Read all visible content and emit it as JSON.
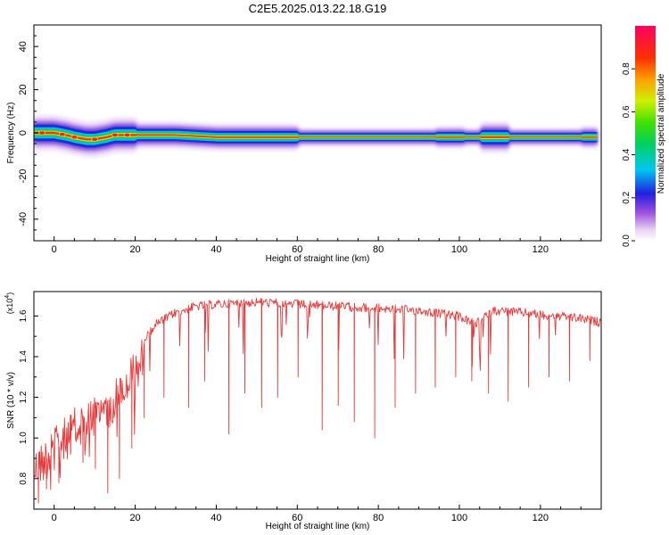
{
  "title": "C2E5.2025.013.22.18.G19",
  "chart_data": [
    {
      "type": "heatmap",
      "xlabel": "Height of straight line (km)",
      "ylabel": "Frequency (Hz)",
      "xlim": [
        -5,
        135
      ],
      "ylim": [
        -50,
        50
      ],
      "x_ticks": [
        0,
        20,
        40,
        60,
        80,
        100,
        120
      ],
      "y_ticks": [
        -40,
        -20,
        0,
        20,
        40
      ],
      "colorbar": {
        "label": "Normalized spectral amplitude",
        "range": [
          0,
          1
        ],
        "ticks": [
          "0.0",
          "0.2",
          "0.4",
          "0.6",
          "0.8"
        ],
        "tick_values": [
          0.0,
          0.2,
          0.4,
          0.6,
          0.8
        ]
      },
      "ridge": {
        "x": [
          -5,
          0,
          3,
          5,
          8,
          10,
          13,
          15,
          18,
          20,
          30,
          40,
          50,
          60,
          70,
          80,
          90,
          100,
          105,
          110,
          120,
          134
        ],
        "frequency": [
          0,
          0,
          -1,
          -2,
          -3,
          -3,
          -2,
          -1,
          -1,
          -1,
          -1,
          -2,
          -2,
          -2,
          -2,
          -2,
          -2,
          -2,
          -2,
          -2,
          -2,
          -2
        ]
      },
      "band_halfwidth_hz": [
        {
          "x": [
            -5,
            20
          ],
          "value": 4
        },
        {
          "x": [
            20,
            60
          ],
          "value": 3
        },
        {
          "x": [
            60,
            94
          ],
          "value": 2
        },
        {
          "x": [
            94,
            101
          ],
          "value": 2.5
        },
        {
          "x": [
            101,
            105
          ],
          "value": 2
        },
        {
          "x": [
            105,
            112
          ],
          "value": 3.5
        },
        {
          "x": [
            112,
            130
          ],
          "value": 2
        },
        {
          "x": [
            130,
            134
          ],
          "value": 2.5
        }
      ],
      "hot_spots_x": [
        -3,
        2,
        5,
        10,
        15,
        18
      ]
    },
    {
      "type": "line",
      "xlabel": "Height of straight line (km)",
      "ylabel": "SNR (10 * v/v)",
      "y_multiplier": "(x10",
      "y_multiplier_exp": "4",
      "xlim": [
        -5,
        135
      ],
      "ylim": [
        0.65,
        1.72
      ],
      "x_ticks": [
        0,
        20,
        40,
        60,
        80,
        100,
        120
      ],
      "y_ticks": [
        "0.8",
        "1.0",
        "1.2",
        "1.4",
        "1.6"
      ],
      "y_tick_values": [
        0.8,
        1.0,
        1.2,
        1.4,
        1.6
      ],
      "series": [
        {
          "color": "#e8393a",
          "envelope": {
            "x": [
              -5,
              0,
              5,
              10,
              15,
              20,
              25,
              30,
              35,
              40,
              50,
              60,
              70,
              80,
              90,
              100,
              104,
              108,
              115,
              120,
              130,
              135
            ],
            "y": [
              0.95,
              1.05,
              1.15,
              1.22,
              1.3,
              1.45,
              1.58,
              1.64,
              1.67,
              1.68,
              1.69,
              1.68,
              1.67,
              1.66,
              1.65,
              1.62,
              1.58,
              1.65,
              1.64,
              1.63,
              1.61,
              1.59
            ]
          },
          "deep_dips": [
            {
              "x": -4,
              "y": 0.68
            },
            {
              "x": -2,
              "y": 0.75
            },
            {
              "x": 1,
              "y": 0.78
            },
            {
              "x": 4,
              "y": 0.92
            },
            {
              "x": 7,
              "y": 0.88
            },
            {
              "x": 10,
              "y": 0.85
            },
            {
              "x": 13,
              "y": 0.73
            },
            {
              "x": 16,
              "y": 0.8
            },
            {
              "x": 19,
              "y": 0.95
            },
            {
              "x": 22,
              "y": 1.1
            },
            {
              "x": 27,
              "y": 1.2
            },
            {
              "x": 33,
              "y": 1.15
            },
            {
              "x": 37,
              "y": 1.28
            },
            {
              "x": 43,
              "y": 1.02
            },
            {
              "x": 47,
              "y": 1.22
            },
            {
              "x": 51,
              "y": 1.15
            },
            {
              "x": 55,
              "y": 1.2
            },
            {
              "x": 60,
              "y": 1.3
            },
            {
              "x": 66,
              "y": 1.04
            },
            {
              "x": 70,
              "y": 1.16
            },
            {
              "x": 74,
              "y": 1.08
            },
            {
              "x": 79,
              "y": 1.0
            },
            {
              "x": 84,
              "y": 1.15
            },
            {
              "x": 89,
              "y": 1.22
            },
            {
              "x": 94,
              "y": 1.25
            },
            {
              "x": 99,
              "y": 1.3
            },
            {
              "x": 103,
              "y": 1.28
            },
            {
              "x": 107,
              "y": 1.22
            },
            {
              "x": 112,
              "y": 1.18
            },
            {
              "x": 117,
              "y": 1.25
            },
            {
              "x": 122,
              "y": 1.3
            },
            {
              "x": 127,
              "y": 1.28
            },
            {
              "x": 132,
              "y": 1.38
            }
          ]
        }
      ]
    }
  ]
}
